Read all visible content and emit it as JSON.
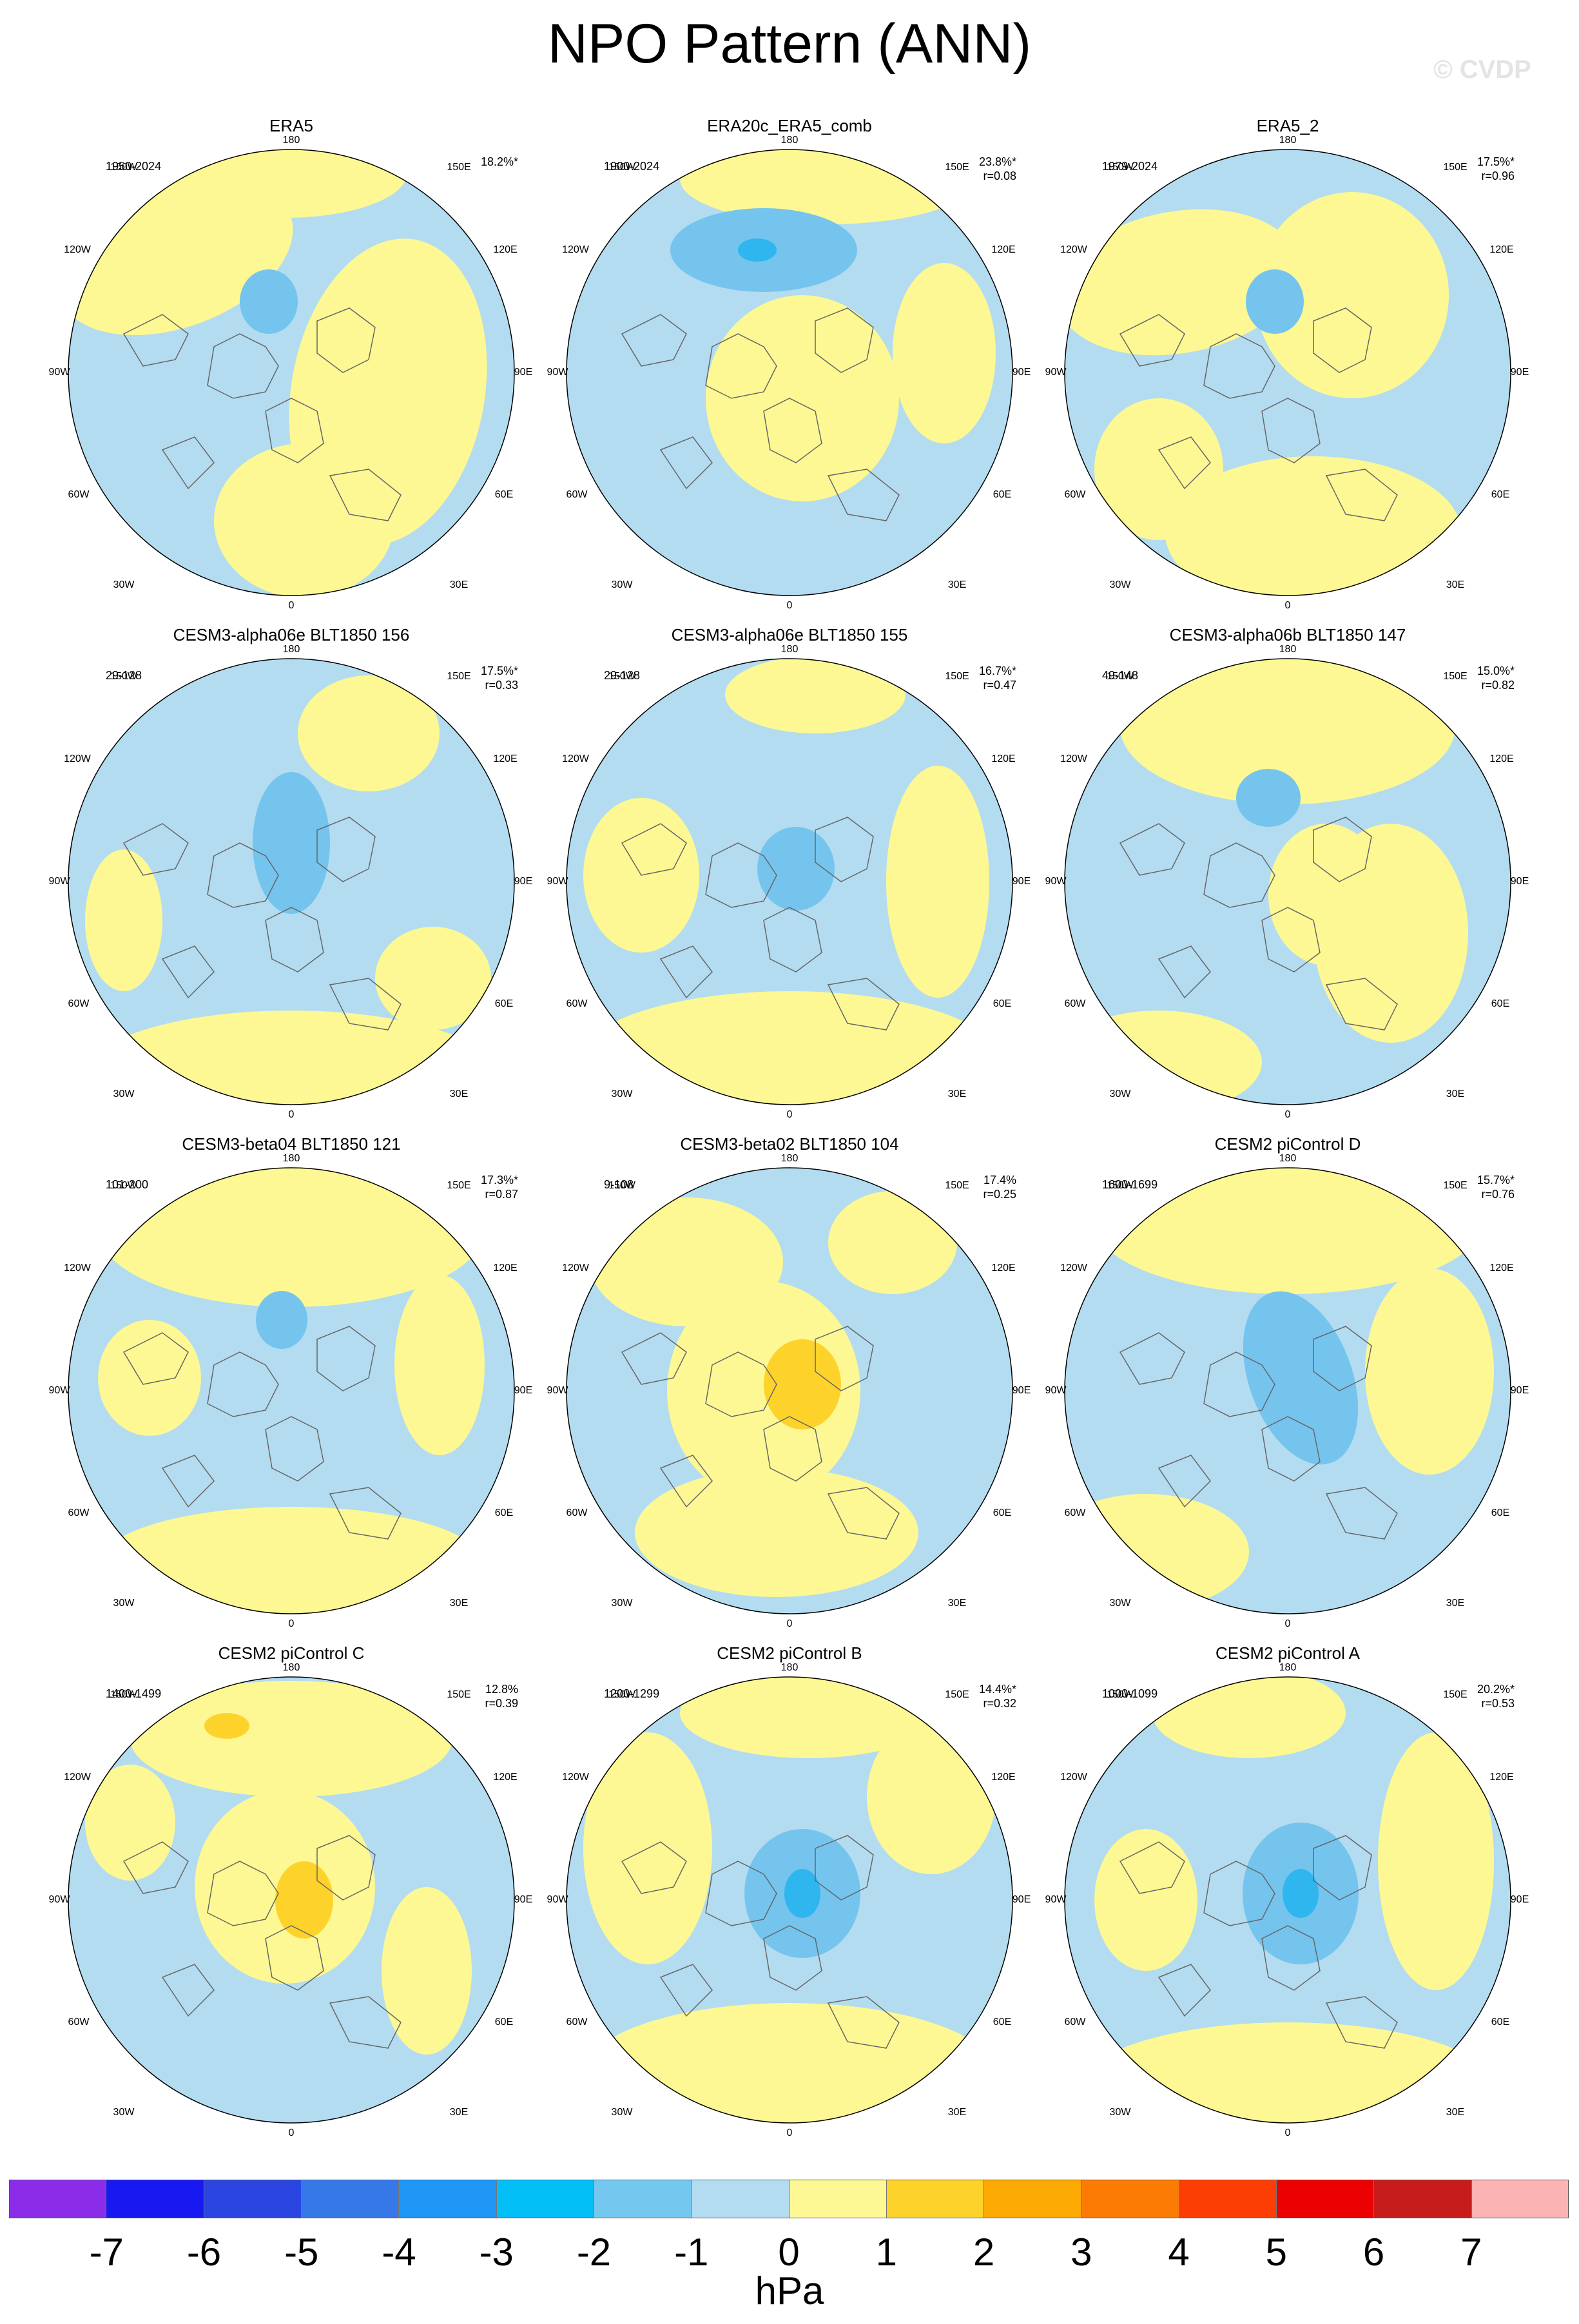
{
  "title": "NPO Pattern (ANN)",
  "watermark": "© CVDP",
  "colors": {
    "ocean_blue": "#b3dcf0",
    "yellow_light": "#fdf893",
    "blue_mid": "#74c4ee",
    "blue_deep": "#2fb6ee",
    "yellow_mid": "#fdd32b",
    "coast": "#666666"
  },
  "longitude_labels": [
    "180",
    "150E",
    "120E",
    "90E",
    "60E",
    "30E",
    "0",
    "30W",
    "60W",
    "90W",
    "120W",
    "150W"
  ],
  "chart_data": [
    {
      "type": "heatmap",
      "title": "ERA5",
      "years": "1950-2024",
      "pct": "18.2%*",
      "r": "",
      "min_hPa": -1.5,
      "max_hPa": 0.5
    },
    {
      "type": "heatmap",
      "title": "ERA20c_ERA5_comb",
      "years": "1900-2024",
      "pct": "23.8%*",
      "r": "r=0.08",
      "min_hPa": -2.5,
      "max_hPa": 0.5
    },
    {
      "type": "heatmap",
      "title": "ERA5_2",
      "years": "1979-2024",
      "pct": "17.5%*",
      "r": "r=0.96",
      "min_hPa": -1.5,
      "max_hPa": 0.5
    },
    {
      "type": "heatmap",
      "title": "CESM3-alpha06e BLT1850 156",
      "years": "29-128",
      "pct": "17.5%*",
      "r": "r=0.33",
      "min_hPa": -1.5,
      "max_hPa": 0.5
    },
    {
      "type": "heatmap",
      "title": "CESM3-alpha06e BLT1850 155",
      "years": "29-128",
      "pct": "16.7%*",
      "r": "r=0.47",
      "min_hPa": -1.5,
      "max_hPa": 0.5
    },
    {
      "type": "heatmap",
      "title": "CESM3-alpha06b BLT1850 147",
      "years": "49-148",
      "pct": "15.0%*",
      "r": "r=0.82",
      "min_hPa": -1.5,
      "max_hPa": 0.5
    },
    {
      "type": "heatmap",
      "title": "CESM3-beta04 BLT1850 121",
      "years": "101-200",
      "pct": "17.3%*",
      "r": "r=0.87",
      "min_hPa": -1.5,
      "max_hPa": 0.5
    },
    {
      "type": "heatmap",
      "title": "CESM3-beta02 BLT1850 104",
      "years": "9-108",
      "pct": "17.4%",
      "r": "r=0.25",
      "min_hPa": -0.5,
      "max_hPa": 1.5
    },
    {
      "type": "heatmap",
      "title": "CESM2 piControl D",
      "years": "1600-1699",
      "pct": "15.7%*",
      "r": "r=0.76",
      "min_hPa": -1.5,
      "max_hPa": 0.5
    },
    {
      "type": "heatmap",
      "title": "CESM2 piControl C",
      "years": "1400-1499",
      "pct": "12.8%",
      "r": "r=0.39",
      "min_hPa": -0.5,
      "max_hPa": 1.5
    },
    {
      "type": "heatmap",
      "title": "CESM2 piControl B",
      "years": "1200-1299",
      "pct": "14.4%*",
      "r": "r=0.32",
      "min_hPa": -2.5,
      "max_hPa": 0.5
    },
    {
      "type": "heatmap",
      "title": "CESM2 piControl A",
      "years": "1000-1099",
      "pct": "20.2%*",
      "r": "r=0.53",
      "min_hPa": -2.5,
      "max_hPa": 0.5
    }
  ],
  "colorbar": {
    "units": "hPa",
    "ticks": [
      "-7",
      "-6",
      "-5",
      "-4",
      "-3",
      "-2",
      "-1",
      "0",
      "1",
      "2",
      "3",
      "4",
      "5",
      "6",
      "7"
    ],
    "colors": [
      "#8a2ce8",
      "#1818f0",
      "#2b46e0",
      "#3778e8",
      "#1e96f5",
      "#01bff6",
      "#74c8f0",
      "#b3dcf0",
      "#fdf893",
      "#fdd32b",
      "#fca903",
      "#fc7b04",
      "#fc3e04",
      "#ea0000",
      "#c61c1c",
      "#fcb3b3"
    ]
  }
}
